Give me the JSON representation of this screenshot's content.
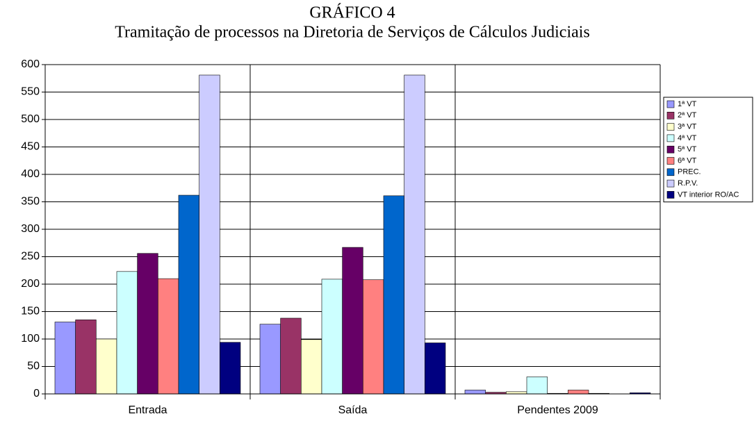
{
  "chart_data": {
    "type": "bar",
    "title": "GRÁFICO 4",
    "subtitle": "Tramitação de processos na Diretoria de Serviços de Cálculos Judiciais",
    "categories": [
      "Entrada",
      "Saída",
      "Pendentes 2009"
    ],
    "series": [
      {
        "name": "1ª VT",
        "color": "#9999ff",
        "values": [
          131,
          127,
          7
        ]
      },
      {
        "name": "2ª VT",
        "color": "#993366",
        "values": [
          135,
          138,
          3
        ]
      },
      {
        "name": "3ª VT",
        "color": "#ffffcc",
        "values": [
          100,
          99,
          4
        ]
      },
      {
        "name": "4ª VT",
        "color": "#ccffff",
        "values": [
          223,
          209,
          31
        ]
      },
      {
        "name": "5ª VT",
        "color": "#660066",
        "values": [
          256,
          267,
          1
        ]
      },
      {
        "name": "6ª VT",
        "color": "#ff8080",
        "values": [
          210,
          208,
          7
        ]
      },
      {
        "name": "PREC.",
        "color": "#0066cc",
        "values": [
          362,
          361,
          1
        ]
      },
      {
        "name": "R.P.V.",
        "color": "#ccccff",
        "values": [
          581,
          581,
          0
        ]
      },
      {
        "name": "VT interior RO/AC",
        "color": "#000080",
        "values": [
          94,
          93,
          2
        ]
      }
    ],
    "ylim": [
      0,
      600
    ],
    "yticks": [
      0,
      50,
      100,
      150,
      200,
      250,
      300,
      350,
      400,
      450,
      500,
      550,
      600
    ],
    "grid": true,
    "legend": "right"
  }
}
